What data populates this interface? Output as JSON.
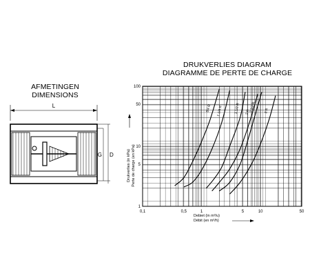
{
  "left_title": [
    "AFMETINGEN",
    "DIMENSIONS"
  ],
  "right_title": [
    "DRUKVERLIES DIAGRAM",
    "DIAGRAMME DE PERTE DE CHARGE"
  ],
  "drawing": {
    "dim_length": "L",
    "dim_diameter_g": "G",
    "dim_diameter_d": "D"
  },
  "chart_data": {
    "type": "line",
    "xscale": "log",
    "yscale": "log",
    "xlim": [
      0.1,
      50
    ],
    "ylim": [
      1,
      100
    ],
    "xticks": [
      "0,1",
      "0,5",
      "1",
      "5",
      "10",
      "50"
    ],
    "yticks": [
      "100",
      "50",
      "10",
      "5",
      "1"
    ],
    "xlabel": [
      "Debiet (in m³/u)",
      "Débit (en m³/h)"
    ],
    "ylabel": [
      "Drukverlies (in kPa)",
      "Perte de charge (en kPa)"
    ],
    "series": [
      {
        "name": "3/4 R",
        "x": [
          0.35,
          0.5,
          0.7,
          1.0,
          1.4,
          2.0
        ],
        "y": [
          2.2,
          3.0,
          5.5,
          12,
          28,
          90
        ]
      },
      {
        "name": "1 1/4 R",
        "x": [
          0.5,
          0.7,
          1.0,
          1.5,
          2.2,
          3.0
        ],
        "y": [
          2.1,
          2.5,
          4.0,
          9,
          25,
          85
        ]
      },
      {
        "name": "1 1/2 R",
        "x": [
          1.2,
          1.6,
          2.2,
          3.0,
          4.5,
          5.5
        ],
        "y": [
          2.0,
          2.8,
          4.5,
          10,
          30,
          80
        ]
      },
      {
        "name": "2 R",
        "x": [
          1.5,
          2.0,
          3.0,
          4.5,
          6.5,
          9.0
        ],
        "y": [
          1.8,
          2.5,
          4.2,
          9,
          25,
          75
        ]
      },
      {
        "name": "2 1/2 R",
        "x": [
          2.0,
          3.0,
          4.5,
          6.0,
          8.0,
          10.5
        ],
        "y": [
          1.8,
          2.5,
          5.0,
          12,
          32,
          80
        ]
      },
      {
        "name": "3 R",
        "x": [
          3.0,
          4.5,
          7.0,
          10.0,
          14.0,
          18.0
        ],
        "y": [
          1.6,
          2.5,
          5.0,
          11,
          28,
          70
        ]
      }
    ],
    "grid": true
  }
}
